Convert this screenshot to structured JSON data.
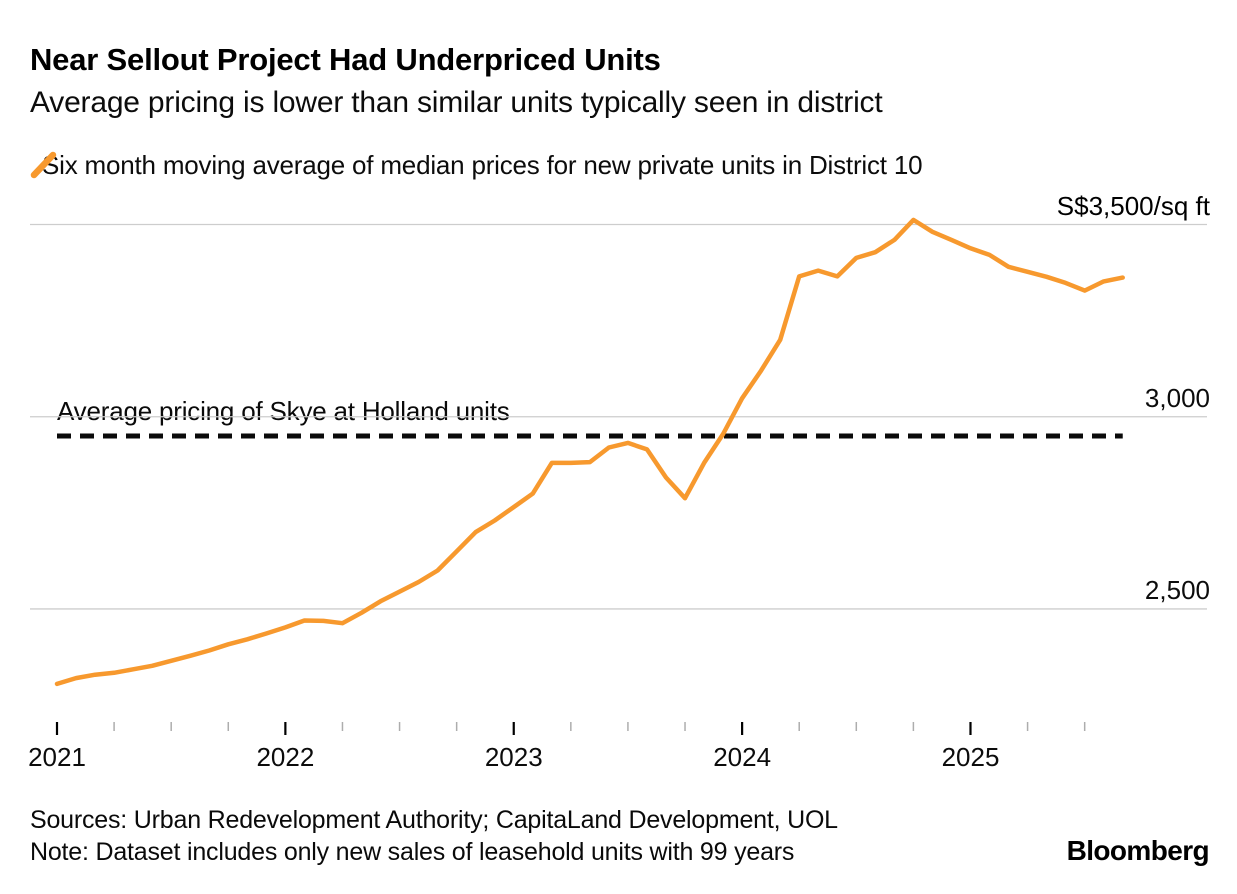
{
  "header": {
    "title": "Near Sellout Project Had Underpriced Units",
    "subtitle": "Average pricing is lower than similar units typically seen in district"
  },
  "legend": {
    "label": "Six month moving average of median prices for new private units in District 10",
    "marker_color": "#F7992E"
  },
  "footer": {
    "sources": "Sources: Urban Redevelopment Authority; CapitaLand Development, UOL",
    "note": "Note: Dataset includes only new sales of leasehold units with 99 years",
    "brand": "Bloomberg"
  },
  "chart_data": {
    "type": "line",
    "title": "Near Sellout Project Had Underpriced Units",
    "subtitle": "Average pricing is lower than similar units typically seen in district",
    "unit": "S$/sq ft",
    "grid": true,
    "legend_position": "top-left",
    "x": [
      "2021-01",
      "2021-02",
      "2021-03",
      "2021-04",
      "2021-05",
      "2021-06",
      "2021-07",
      "2021-08",
      "2021-09",
      "2021-10",
      "2021-11",
      "2021-12",
      "2022-01",
      "2022-02",
      "2022-03",
      "2022-04",
      "2022-05",
      "2022-06",
      "2022-07",
      "2022-08",
      "2022-09",
      "2022-10",
      "2022-11",
      "2022-12",
      "2023-01",
      "2023-02",
      "2023-03",
      "2023-04",
      "2023-05",
      "2023-06",
      "2023-07",
      "2023-08",
      "2023-09",
      "2023-10",
      "2023-11",
      "2023-12",
      "2024-01",
      "2024-02",
      "2024-03",
      "2024-04",
      "2024-05",
      "2024-06",
      "2024-07",
      "2024-08",
      "2024-09",
      "2024-10",
      "2024-11",
      "2024-12",
      "2025-01",
      "2025-02",
      "2025-03",
      "2025-04",
      "2025-05",
      "2025-06",
      "2025-07",
      "2025-08",
      "2025-09"
    ],
    "series": [
      {
        "name": "Six month moving average of median prices for new private units in District 10",
        "color": "#F7992E",
        "values": [
          2305,
          2320,
          2329,
          2334,
          2343,
          2352,
          2365,
          2378,
          2392,
          2408,
          2421,
          2436,
          2452,
          2470,
          2469,
          2463,
          2490,
          2520,
          2545,
          2570,
          2600,
          2650,
          2700,
          2730,
          2765,
          2800,
          2880,
          2880,
          2882,
          2920,
          2932,
          2915,
          2842,
          2788,
          2880,
          2955,
          3048,
          3120,
          3200,
          3365,
          3380,
          3365,
          3413,
          3428,
          3460,
          3512,
          3481,
          3460,
          3438,
          3421,
          3390,
          3377,
          3364,
          3348,
          3328,
          3352,
          3362
        ]
      }
    ],
    "reference_line": {
      "label": "Average pricing of Skye at Holland units",
      "value": 2950,
      "style": "dashed",
      "color": "#0a0a0a"
    },
    "y_axis": {
      "min": 2250,
      "max": 3550,
      "ticks": [
        {
          "value": 3500,
          "label": "S$3,500/sq ft"
        },
        {
          "value": 3000,
          "label": "3,000"
        },
        {
          "value": 2500,
          "label": "2,500"
        }
      ]
    },
    "x_axis": {
      "year_labels": [
        "2021",
        "2022",
        "2023",
        "2024",
        "2025"
      ],
      "minor_tick_interval_months": 3
    }
  }
}
